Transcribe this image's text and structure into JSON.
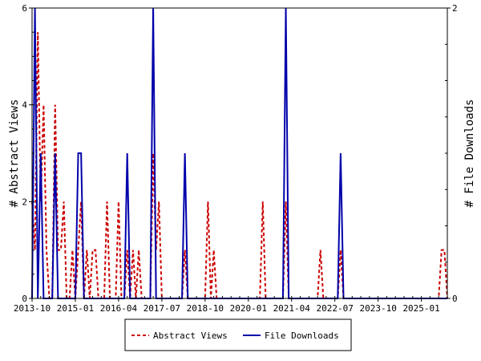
{
  "chart_data": {
    "type": "line",
    "ylabel_left": "# Abstract Views",
    "ylabel_right": "# File Downloads",
    "ylim_left": [
      0,
      6
    ],
    "ylim_right": [
      0,
      2
    ],
    "y_ticks_left": [
      0,
      2,
      4,
      6
    ],
    "y_ticks_right": [
      0,
      2
    ],
    "x_range": [
      "2013-10",
      "2025-10"
    ],
    "x_tick_labels": [
      "2013-10",
      "2015-01",
      "2016-04",
      "2017-07",
      "2018-10",
      "2020-01",
      "2021-04",
      "2022-07",
      "2023-10",
      "2025-01"
    ],
    "grid": false,
    "legend_position": "bottom-center",
    "series": [
      {
        "name": "Abstract Views",
        "axis": "left",
        "color": "#cc0000",
        "style": "dashed",
        "points": [
          [
            "2013-10",
            2
          ],
          [
            "2013-11",
            1
          ],
          [
            "2013-12",
            5.5
          ],
          [
            "2014-01",
            2
          ],
          [
            "2014-02",
            4
          ],
          [
            "2014-03",
            1
          ],
          [
            "2014-04",
            0
          ],
          [
            "2014-05",
            0
          ],
          [
            "2014-06",
            4
          ],
          [
            "2014-07",
            1
          ],
          [
            "2014-08",
            1
          ],
          [
            "2014-09",
            2
          ],
          [
            "2014-10",
            0
          ],
          [
            "2014-11",
            0
          ],
          [
            "2014-12",
            1
          ],
          [
            "2015-01",
            0
          ],
          [
            "2015-02",
            1
          ],
          [
            "2015-03",
            2
          ],
          [
            "2015-04",
            0
          ],
          [
            "2015-05",
            1
          ],
          [
            "2015-06",
            0
          ],
          [
            "2015-07",
            1
          ],
          [
            "2015-08",
            1
          ],
          [
            "2015-09",
            0
          ],
          [
            "2015-10",
            0
          ],
          [
            "2015-11",
            0
          ],
          [
            "2015-12",
            2
          ],
          [
            "2016-01",
            0
          ],
          [
            "2016-02",
            0
          ],
          [
            "2016-03",
            0
          ],
          [
            "2016-04",
            2
          ],
          [
            "2016-05",
            0
          ],
          [
            "2016-06",
            0
          ],
          [
            "2016-07",
            1
          ],
          [
            "2016-08",
            0
          ],
          [
            "2016-09",
            1
          ],
          [
            "2016-10",
            0
          ],
          [
            "2016-11",
            1
          ],
          [
            "2016-12",
            0
          ],
          [
            "2017-01",
            0
          ],
          [
            "2017-02",
            0
          ],
          [
            "2017-03",
            0
          ],
          [
            "2017-04",
            3
          ],
          [
            "2017-05",
            1
          ],
          [
            "2017-06",
            2
          ],
          [
            "2017-07",
            0
          ],
          [
            "2017-08",
            0
          ],
          [
            "2017-09",
            0
          ],
          [
            "2017-10",
            0
          ],
          [
            "2017-11",
            0
          ],
          [
            "2017-12",
            0
          ],
          [
            "2018-01",
            0
          ],
          [
            "2018-02",
            0
          ],
          [
            "2018-03",
            1
          ],
          [
            "2018-04",
            0
          ],
          [
            "2018-05",
            0
          ],
          [
            "2018-06",
            0
          ],
          [
            "2018-07",
            0
          ],
          [
            "2018-08",
            0
          ],
          [
            "2018-09",
            0
          ],
          [
            "2018-10",
            0
          ],
          [
            "2018-11",
            2
          ],
          [
            "2018-12",
            0
          ],
          [
            "2019-01",
            1
          ],
          [
            "2019-02",
            0
          ],
          [
            "2019-03",
            0
          ],
          [
            "2019-04",
            0
          ],
          [
            "2019-05",
            0
          ],
          [
            "2019-06",
            0
          ],
          [
            "2019-07",
            0
          ],
          [
            "2019-08",
            0
          ],
          [
            "2019-09",
            0
          ],
          [
            "2019-10",
            0
          ],
          [
            "2019-11",
            0
          ],
          [
            "2019-12",
            0
          ],
          [
            "2020-01",
            0
          ],
          [
            "2020-02",
            0
          ],
          [
            "2020-03",
            0
          ],
          [
            "2020-04",
            0
          ],
          [
            "2020-05",
            0
          ],
          [
            "2020-06",
            2
          ],
          [
            "2020-07",
            0
          ],
          [
            "2020-08",
            0
          ],
          [
            "2020-09",
            0
          ],
          [
            "2020-10",
            0
          ],
          [
            "2020-11",
            0
          ],
          [
            "2020-12",
            0
          ],
          [
            "2021-01",
            0
          ],
          [
            "2021-02",
            2
          ],
          [
            "2021-03",
            0
          ],
          [
            "2021-04",
            0
          ],
          [
            "2021-05",
            0
          ],
          [
            "2021-06",
            0
          ],
          [
            "2021-07",
            0
          ],
          [
            "2021-08",
            0
          ],
          [
            "2021-09",
            0
          ],
          [
            "2021-10",
            0
          ],
          [
            "2021-11",
            0
          ],
          [
            "2021-12",
            0
          ],
          [
            "2022-01",
            0
          ],
          [
            "2022-02",
            1
          ],
          [
            "2022-03",
            0
          ],
          [
            "2022-04",
            0
          ],
          [
            "2022-05",
            0
          ],
          [
            "2022-06",
            0
          ],
          [
            "2022-07",
            0
          ],
          [
            "2022-08",
            0
          ],
          [
            "2022-09",
            1
          ],
          [
            "2022-10",
            0
          ],
          [
            "2022-11",
            0
          ],
          [
            "2022-12",
            0
          ],
          [
            "2023-01",
            0
          ],
          [
            "2023-02",
            0
          ],
          [
            "2023-03",
            0
          ],
          [
            "2023-04",
            0
          ],
          [
            "2023-05",
            0
          ],
          [
            "2023-06",
            0
          ],
          [
            "2023-07",
            0
          ],
          [
            "2023-08",
            0
          ],
          [
            "2023-09",
            0
          ],
          [
            "2023-10",
            0
          ],
          [
            "2023-11",
            0
          ],
          [
            "2023-12",
            0
          ],
          [
            "2024-01",
            0
          ],
          [
            "2024-02",
            0
          ],
          [
            "2024-03",
            0
          ],
          [
            "2024-04",
            0
          ],
          [
            "2024-05",
            0
          ],
          [
            "2024-06",
            0
          ],
          [
            "2024-07",
            0
          ],
          [
            "2024-08",
            0
          ],
          [
            "2024-09",
            0
          ],
          [
            "2024-10",
            0
          ],
          [
            "2024-11",
            0
          ],
          [
            "2024-12",
            0
          ],
          [
            "2025-01",
            0
          ],
          [
            "2025-02",
            0
          ],
          [
            "2025-03",
            0
          ],
          [
            "2025-04",
            0
          ],
          [
            "2025-05",
            0
          ],
          [
            "2025-06",
            0
          ],
          [
            "2025-07",
            0
          ],
          [
            "2025-08",
            1
          ],
          [
            "2025-09",
            1
          ],
          [
            "2025-10",
            0
          ]
        ]
      },
      {
        "name": "File Downloads",
        "axis": "right",
        "color": "#0000aa",
        "style": "solid",
        "points": [
          [
            "2013-10",
            0
          ],
          [
            "2013-11",
            2
          ],
          [
            "2013-12",
            0
          ],
          [
            "2014-01",
            1
          ],
          [
            "2014-02",
            0
          ],
          [
            "2014-03",
            0
          ],
          [
            "2014-04",
            0
          ],
          [
            "2014-05",
            0
          ],
          [
            "2014-06",
            1
          ],
          [
            "2014-07",
            0
          ],
          [
            "2014-08",
            0
          ],
          [
            "2014-09",
            0
          ],
          [
            "2014-10",
            0
          ],
          [
            "2014-11",
            0
          ],
          [
            "2014-12",
            0
          ],
          [
            "2015-01",
            0
          ],
          [
            "2015-02",
            1
          ],
          [
            "2015-03",
            1
          ],
          [
            "2015-04",
            0
          ],
          [
            "2015-05",
            0
          ],
          [
            "2015-06",
            0
          ],
          [
            "2015-07",
            0
          ],
          [
            "2015-08",
            0
          ],
          [
            "2015-09",
            0
          ],
          [
            "2015-10",
            0
          ],
          [
            "2015-11",
            0
          ],
          [
            "2015-12",
            0
          ],
          [
            "2016-01",
            0
          ],
          [
            "2016-02",
            0
          ],
          [
            "2016-03",
            0
          ],
          [
            "2016-04",
            0
          ],
          [
            "2016-05",
            0
          ],
          [
            "2016-06",
            0
          ],
          [
            "2016-07",
            1
          ],
          [
            "2016-08",
            0
          ],
          [
            "2016-09",
            0
          ],
          [
            "2016-10",
            0
          ],
          [
            "2016-11",
            0
          ],
          [
            "2016-12",
            0
          ],
          [
            "2017-01",
            0
          ],
          [
            "2017-02",
            0
          ],
          [
            "2017-03",
            0
          ],
          [
            "2017-04",
            2
          ],
          [
            "2017-05",
            0
          ],
          [
            "2017-06",
            0
          ],
          [
            "2017-07",
            0
          ],
          [
            "2017-08",
            0
          ],
          [
            "2017-09",
            0
          ],
          [
            "2017-10",
            0
          ],
          [
            "2017-11",
            0
          ],
          [
            "2017-12",
            0
          ],
          [
            "2018-01",
            0
          ],
          [
            "2018-02",
            0
          ],
          [
            "2018-03",
            1
          ],
          [
            "2018-04",
            0
          ],
          [
            "2018-05",
            0
          ],
          [
            "2018-06",
            0
          ],
          [
            "2018-07",
            0
          ],
          [
            "2018-08",
            0
          ],
          [
            "2018-09",
            0
          ],
          [
            "2018-10",
            0
          ],
          [
            "2018-11",
            0
          ],
          [
            "2018-12",
            0
          ],
          [
            "2019-01",
            0
          ],
          [
            "2019-02",
            0
          ],
          [
            "2019-03",
            0
          ],
          [
            "2019-04",
            0
          ],
          [
            "2019-05",
            0
          ],
          [
            "2019-06",
            0
          ],
          [
            "2019-07",
            0
          ],
          [
            "2019-08",
            0
          ],
          [
            "2019-09",
            0
          ],
          [
            "2019-10",
            0
          ],
          [
            "2019-11",
            0
          ],
          [
            "2019-12",
            0
          ],
          [
            "2020-01",
            0
          ],
          [
            "2020-02",
            0
          ],
          [
            "2020-03",
            0
          ],
          [
            "2020-04",
            0
          ],
          [
            "2020-05",
            0
          ],
          [
            "2020-06",
            0
          ],
          [
            "2020-07",
            0
          ],
          [
            "2020-08",
            0
          ],
          [
            "2020-09",
            0
          ],
          [
            "2020-10",
            0
          ],
          [
            "2020-11",
            0
          ],
          [
            "2020-12",
            0
          ],
          [
            "2021-01",
            0
          ],
          [
            "2021-02",
            2
          ],
          [
            "2021-03",
            0
          ],
          [
            "2021-04",
            0
          ],
          [
            "2021-05",
            0
          ],
          [
            "2021-06",
            0
          ],
          [
            "2021-07",
            0
          ],
          [
            "2021-08",
            0
          ],
          [
            "2021-09",
            0
          ],
          [
            "2021-10",
            0
          ],
          [
            "2021-11",
            0
          ],
          [
            "2021-12",
            0
          ],
          [
            "2022-01",
            0
          ],
          [
            "2022-02",
            0
          ],
          [
            "2022-03",
            0
          ],
          [
            "2022-04",
            0
          ],
          [
            "2022-05",
            0
          ],
          [
            "2022-06",
            0
          ],
          [
            "2022-07",
            0
          ],
          [
            "2022-08",
            0
          ],
          [
            "2022-09",
            1
          ],
          [
            "2022-10",
            0
          ],
          [
            "2022-11",
            0
          ],
          [
            "2022-12",
            0
          ],
          [
            "2023-01",
            0
          ],
          [
            "2023-02",
            0
          ],
          [
            "2023-03",
            0
          ],
          [
            "2023-04",
            0
          ],
          [
            "2023-05",
            0
          ],
          [
            "2023-06",
            0
          ],
          [
            "2023-07",
            0
          ],
          [
            "2023-08",
            0
          ],
          [
            "2023-09",
            0
          ],
          [
            "2023-10",
            0
          ],
          [
            "2023-11",
            0
          ],
          [
            "2023-12",
            0
          ],
          [
            "2024-01",
            0
          ],
          [
            "2024-02",
            0
          ],
          [
            "2024-03",
            0
          ],
          [
            "2024-04",
            0
          ],
          [
            "2024-05",
            0
          ],
          [
            "2024-06",
            0
          ],
          [
            "2024-07",
            0
          ],
          [
            "2024-08",
            0
          ],
          [
            "2024-09",
            0
          ],
          [
            "2024-10",
            0
          ],
          [
            "2024-11",
            0
          ],
          [
            "2024-12",
            0
          ],
          [
            "2025-01",
            0
          ],
          [
            "2025-02",
            0
          ],
          [
            "2025-03",
            0
          ],
          [
            "2025-04",
            0
          ],
          [
            "2025-05",
            0
          ],
          [
            "2025-06",
            0
          ],
          [
            "2025-07",
            0
          ],
          [
            "2025-08",
            0
          ],
          [
            "2025-09",
            0
          ],
          [
            "2025-10",
            0
          ]
        ]
      }
    ]
  }
}
